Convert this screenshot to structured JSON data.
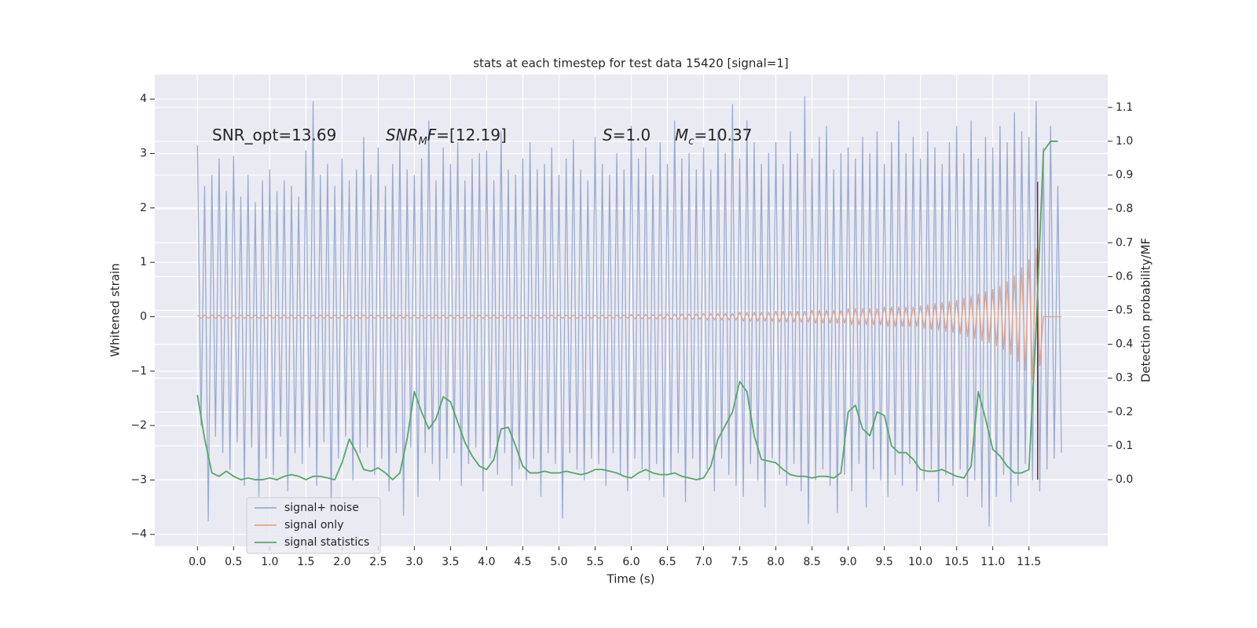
{
  "chart_data": {
    "type": "line",
    "title": "stats at each timestep for test data 15420 [signal=1]",
    "x_label": "Time (s)",
    "y_label": "Whitened strain",
    "y2_label": "Detection probability/MF",
    "grid": true,
    "legend": "lower left",
    "xlim": [
      -0.59,
      12.59
    ],
    "ylim": [
      -4.22,
      4.45
    ],
    "y2lim": [
      -0.197,
      1.197
    ],
    "xticks": [
      {
        "value": 0,
        "label": "0.0"
      },
      0.5,
      {
        "value": 1,
        "label": "1.0"
      },
      1.5,
      {
        "value": 2,
        "label": "2.0"
      },
      2.5,
      {
        "value": 3,
        "label": "3.0"
      },
      3.5,
      {
        "value": 4,
        "label": "4.0"
      },
      4.5,
      {
        "value": 5,
        "label": "5.0"
      },
      5.5,
      {
        "value": 6,
        "label": "6.0"
      },
      6.5,
      {
        "value": 7,
        "label": "7.0"
      },
      7.5,
      {
        "value": 8,
        "label": "8.0"
      },
      8.5,
      {
        "value": 9,
        "label": "9.0"
      },
      9.5,
      {
        "value": 10,
        "label": "10.0"
      },
      10.5,
      {
        "value": 11,
        "label": "11.0"
      },
      11.5
    ],
    "yticks": [
      {
        "value": -4,
        "label": "−4"
      },
      {
        "value": -3,
        "label": "−3"
      },
      {
        "value": -2,
        "label": "−2"
      },
      {
        "value": -1,
        "label": "−1"
      },
      0,
      1,
      2,
      3,
      4
    ],
    "y2ticks": [
      {
        "value": 0,
        "label": "0.0"
      },
      0.1,
      0.2,
      0.3,
      0.4,
      0.5,
      0.6,
      0.7,
      0.8,
      0.9,
      {
        "value": 1,
        "label": "1.0"
      },
      1.1
    ],
    "annotations": [
      [
        {
          "text": "SNR_opt=13.69",
          "style": "normal"
        }
      ],
      [
        {
          "text": "SNR",
          "style": "italic"
        },
        {
          "text": "M",
          "style": "sub"
        },
        {
          "text": "F",
          "style": "italic"
        },
        {
          "text": "=[12.19]",
          "style": "normal"
        }
      ],
      [
        {
          "text": "S",
          "style": "italic"
        },
        {
          "text": "=1.0",
          "style": "normal"
        }
      ],
      [
        {
          "text": "M",
          "style": "italic"
        },
        {
          "text": "c",
          "style": "sub"
        },
        {
          "text": "=10.37",
          "style": "normal"
        }
      ]
    ],
    "vline": {
      "x": 11.62,
      "ymin": 0,
      "ymax": 0.88,
      "color": "#7a2e2e",
      "axis": "y2"
    },
    "x": [
      0,
      0.05,
      0.1,
      0.15,
      0.2,
      0.25,
      0.3,
      0.35,
      0.4,
      0.45,
      0.5,
      0.55,
      0.6,
      0.65,
      0.7,
      0.75,
      0.8,
      0.85,
      0.9,
      0.95,
      1,
      1.05,
      1.1,
      1.15,
      1.2,
      1.25,
      1.3,
      1.35,
      1.4,
      1.45,
      1.5,
      1.55,
      1.6,
      1.65,
      1.7,
      1.75,
      1.8,
      1.85,
      1.9,
      1.95,
      2,
      2.05,
      2.1,
      2.15,
      2.2,
      2.25,
      2.3,
      2.35,
      2.4,
      2.45,
      2.5,
      2.55,
      2.6,
      2.65,
      2.7,
      2.75,
      2.8,
      2.85,
      2.9,
      2.95,
      3,
      3.05,
      3.1,
      3.15,
      3.2,
      3.25,
      3.3,
      3.35,
      3.4,
      3.45,
      3.5,
      3.55,
      3.6,
      3.65,
      3.7,
      3.75,
      3.8,
      3.85,
      3.9,
      3.95,
      4,
      4.05,
      4.1,
      4.15,
      4.2,
      4.25,
      4.3,
      4.35,
      4.4,
      4.45,
      4.5,
      4.55,
      4.6,
      4.65,
      4.7,
      4.75,
      4.8,
      4.85,
      4.9,
      4.95,
      5,
      5.05,
      5.1,
      5.15,
      5.2,
      5.25,
      5.3,
      5.35,
      5.4,
      5.45,
      5.5,
      5.55,
      5.6,
      5.65,
      5.7,
      5.75,
      5.8,
      5.85,
      5.9,
      5.95,
      6,
      6.05,
      6.1,
      6.15,
      6.2,
      6.25,
      6.3,
      6.35,
      6.4,
      6.45,
      6.5,
      6.55,
      6.6,
      6.65,
      6.7,
      6.75,
      6.8,
      6.85,
      6.9,
      6.95,
      7,
      7.05,
      7.1,
      7.15,
      7.2,
      7.25,
      7.3,
      7.35,
      7.4,
      7.45,
      7.5,
      7.55,
      7.6,
      7.65,
      7.7,
      7.75,
      7.8,
      7.85,
      7.9,
      7.95,
      8,
      8.05,
      8.1,
      8.15,
      8.2,
      8.25,
      8.3,
      8.35,
      8.4,
      8.45,
      8.5,
      8.55,
      8.6,
      8.65,
      8.7,
      8.75,
      8.8,
      8.85,
      8.9,
      8.95,
      9,
      9.05,
      9.1,
      9.15,
      9.2,
      9.25,
      9.3,
      9.35,
      9.4,
      9.45,
      9.5,
      9.55,
      9.6,
      9.65,
      9.7,
      9.75,
      9.8,
      9.85,
      9.9,
      9.95,
      10,
      10.05,
      10.1,
      10.15,
      10.2,
      10.25,
      10.3,
      10.35,
      10.4,
      10.45,
      10.5,
      10.55,
      10.6,
      10.65,
      10.7,
      10.75,
      10.8,
      10.85,
      10.9,
      10.95,
      11,
      11.05,
      11.1,
      11.15,
      11.2,
      11.25,
      11.3,
      11.35,
      11.4,
      11.45,
      11.5,
      11.55,
      11.6,
      11.65,
      11.7,
      11.75,
      11.8,
      11.85,
      11.9,
      11.95
    ],
    "series": [
      {
        "name": "signal+ noise",
        "color": "#9aacd2",
        "values": [
          3.15,
          -2.0,
          2.4,
          -3.75,
          2.6,
          -2.2,
          2.9,
          -2.5,
          2.3,
          -2.8,
          2.95,
          -2.3,
          2.2,
          -3.1,
          2.6,
          -2.4,
          2.1,
          -3.3,
          2.5,
          -2.6,
          2.7,
          -2.9,
          2.3,
          -2.2,
          2.5,
          -3.2,
          2.4,
          -2.5,
          2.2,
          -2.7,
          3.05,
          -2.4,
          3.95,
          -3.1,
          2.6,
          -2.3,
          2.8,
          -3.5,
          2.4,
          -2.6,
          2.9,
          -2.2,
          2.5,
          -3.0,
          2.7,
          -2.5,
          3.3,
          -2.4,
          2.6,
          -2.9,
          3.1,
          -2.6,
          2.4,
          -3.2,
          2.8,
          -2.5,
          3.3,
          -3.65,
          2.7,
          -2.4,
          2.6,
          -3.3,
          2.9,
          -2.5,
          3.6,
          -2.7,
          2.5,
          -3.0,
          3.1,
          -2.6,
          2.8,
          -2.5,
          3.2,
          -3.1,
          2.5,
          -2.7,
          2.9,
          -2.4,
          3.0,
          -3.2,
          3.05,
          -2.6,
          2.5,
          -2.9,
          3.4,
          -2.5,
          2.7,
          -3.1,
          2.6,
          -2.8,
          2.9,
          -3.0,
          3.2,
          -2.6,
          2.7,
          -3.3,
          2.8,
          -2.5,
          3.1,
          -2.7,
          2.6,
          -3.7,
          2.9,
          -2.5,
          3.25,
          -2.8,
          2.7,
          -3.0,
          2.5,
          -2.6,
          3.3,
          -2.7,
          2.8,
          -3.1,
          2.6,
          -2.5,
          3.0,
          -2.9,
          2.7,
          -3.2,
          3.5,
          -2.6,
          2.9,
          -2.8,
          3.1,
          -3.0,
          2.6,
          -2.7,
          3.2,
          -3.3,
          2.8,
          -2.9,
          3.6,
          -2.5,
          2.9,
          -3.4,
          3.0,
          -2.6,
          2.7,
          -3.0,
          3.1,
          -2.8,
          2.7,
          -3.2,
          3.4,
          -2.6,
          3.0,
          -2.9,
          3.9,
          -3.1,
          2.9,
          -3.3,
          3.6,
          -2.7,
          3.2,
          -3.0,
          2.8,
          -3.5,
          3.0,
          -2.6,
          3.2,
          -2.9,
          2.8,
          -3.1,
          3.4,
          -2.7,
          3.0,
          -3.2,
          4.05,
          -3.8,
          2.9,
          -3.0,
          3.3,
          -2.8,
          3.5,
          -3.1,
          2.7,
          -3.6,
          3.0,
          -2.9,
          3.1,
          -3.2,
          2.9,
          -2.7,
          3.3,
          -3.5,
          3.0,
          -2.8,
          3.4,
          -3.0,
          2.8,
          -3.3,
          3.2,
          -2.9,
          3.6,
          -3.1,
          3.0,
          -2.7,
          3.3,
          -3.2,
          2.9,
          -3.0,
          3.4,
          -2.8,
          3.1,
          -3.4,
          2.8,
          -2.9,
          3.2,
          -3.1,
          3.5,
          -2.8,
          3.0,
          -3.3,
          3.6,
          -3.0,
          2.9,
          -3.5,
          3.3,
          -3.85,
          3.1,
          -3.3,
          3.5,
          -2.9,
          3.2,
          -3.4,
          3.75,
          -3.1,
          3.4,
          -2.7,
          3.3,
          -3.0,
          3.95,
          -3.2,
          3.1,
          -2.8,
          3.5,
          -2.6,
          2.4,
          -2.5
        ]
      },
      {
        "name": "signal only",
        "color": "#e1a58a",
        "values": [
          0.03,
          -0.03,
          0.03,
          -0.03,
          0.03,
          -0.03,
          0.03,
          -0.03,
          0.03,
          -0.03,
          0.03,
          -0.03,
          0.03,
          -0.03,
          0.03,
          -0.03,
          0.03,
          -0.03,
          0.03,
          -0.03,
          0.03,
          -0.03,
          0.03,
          -0.03,
          0.03,
          -0.03,
          0.03,
          -0.03,
          0.03,
          -0.03,
          0.03,
          -0.03,
          0.03,
          -0.03,
          0.03,
          -0.03,
          0.03,
          -0.03,
          0.03,
          -0.03,
          0.03,
          -0.03,
          0.03,
          -0.03,
          0.03,
          -0.03,
          0.03,
          -0.03,
          0.03,
          -0.03,
          0.03,
          -0.03,
          0.03,
          -0.03,
          0.03,
          -0.03,
          0.03,
          -0.03,
          0.03,
          -0.03,
          0.03,
          -0.03,
          0.03,
          -0.03,
          0.03,
          -0.03,
          0.03,
          -0.03,
          0.03,
          -0.03,
          0.03,
          -0.03,
          0.03,
          -0.03,
          0.03,
          -0.03,
          0.03,
          -0.03,
          0.03,
          -0.03,
          0.03,
          -0.03,
          0.03,
          -0.03,
          0.03,
          -0.03,
          0.03,
          -0.03,
          0.03,
          -0.03,
          0.03,
          -0.03,
          0.03,
          -0.03,
          0.03,
          -0.03,
          0.03,
          -0.03,
          0.03,
          -0.03,
          0.03,
          -0.03,
          0.03,
          -0.03,
          0.03,
          -0.03,
          0.03,
          -0.03,
          0.03,
          -0.03,
          0.03,
          -0.03,
          0.03,
          -0.03,
          0.03,
          -0.03,
          0.03,
          -0.03,
          0.03,
          -0.03,
          0.04,
          -0.04,
          0.04,
          -0.04,
          0.04,
          -0.04,
          0.04,
          -0.04,
          0.04,
          -0.04,
          0.05,
          -0.05,
          0.05,
          -0.05,
          0.05,
          -0.05,
          0.05,
          -0.05,
          0.05,
          -0.05,
          0.06,
          -0.06,
          0.06,
          -0.06,
          0.06,
          -0.06,
          0.06,
          -0.06,
          0.06,
          -0.06,
          0.08,
          -0.08,
          0.08,
          -0.08,
          0.08,
          -0.08,
          0.08,
          -0.08,
          0.08,
          -0.08,
          0.1,
          -0.1,
          0.1,
          -0.1,
          0.1,
          -0.1,
          0.1,
          -0.1,
          0.1,
          -0.1,
          0.12,
          -0.12,
          0.12,
          -0.12,
          0.12,
          -0.12,
          0.12,
          -0.12,
          0.12,
          -0.12,
          0.15,
          -0.15,
          0.15,
          -0.15,
          0.15,
          -0.15,
          0.15,
          -0.15,
          0.15,
          -0.15,
          0.18,
          -0.18,
          0.18,
          -0.18,
          0.18,
          -0.18,
          0.18,
          -0.18,
          0.18,
          -0.18,
          0.2,
          -0.21,
          0.22,
          -0.23,
          0.24,
          -0.25,
          0.26,
          -0.27,
          0.28,
          -0.29,
          0.3,
          -0.32,
          0.34,
          -0.36,
          0.38,
          -0.4,
          0.42,
          -0.44,
          0.46,
          -0.48,
          0.5,
          -0.53,
          0.56,
          -0.6,
          0.64,
          -0.69,
          0.75,
          -0.82,
          0.9,
          -0.98,
          1.05,
          -1.15,
          1.25,
          -0.9,
          0,
          0,
          0,
          0,
          0,
          0
        ]
      },
      {
        "name": "signal statistics",
        "color": "#55a868",
        "axis": "y2",
        "x": [
          0,
          0.1,
          0.2,
          0.3,
          0.4,
          0.5,
          0.6,
          0.7,
          0.8,
          0.9,
          1,
          1.1,
          1.2,
          1.3,
          1.4,
          1.5,
          1.6,
          1.7,
          1.8,
          1.9,
          2,
          2.1,
          2.2,
          2.3,
          2.4,
          2.5,
          2.6,
          2.7,
          2.8,
          2.9,
          3,
          3.1,
          3.2,
          3.3,
          3.4,
          3.5,
          3.6,
          3.7,
          3.8,
          3.9,
          4,
          4.1,
          4.2,
          4.3,
          4.4,
          4.5,
          4.6,
          4.7,
          4.8,
          4.9,
          5,
          5.1,
          5.2,
          5.3,
          5.4,
          5.5,
          5.6,
          5.7,
          5.8,
          5.9,
          6,
          6.1,
          6.2,
          6.3,
          6.4,
          6.5,
          6.6,
          6.7,
          6.8,
          6.9,
          7,
          7.1,
          7.2,
          7.3,
          7.4,
          7.5,
          7.6,
          7.7,
          7.8,
          7.9,
          8,
          8.1,
          8.2,
          8.3,
          8.4,
          8.5,
          8.6,
          8.7,
          8.8,
          8.9,
          9,
          9.1,
          9.2,
          9.3,
          9.4,
          9.5,
          9.6,
          9.7,
          9.8,
          9.9,
          10,
          10.1,
          10.2,
          10.3,
          10.4,
          10.5,
          10.6,
          10.7,
          10.8,
          10.9,
          11,
          11.1,
          11.2,
          11.3,
          11.4,
          11.5,
          11.6,
          11.7,
          11.8,
          11.9
        ],
        "values": [
          0.25,
          0.12,
          0.02,
          0.01,
          0.025,
          0.01,
          0.0,
          0.005,
          0.0,
          0.0,
          0.005,
          0.0,
          0.01,
          0.015,
          0.01,
          0.0,
          0.01,
          0.01,
          0.005,
          0.0,
          0.05,
          0.12,
          0.08,
          0.03,
          0.025,
          0.035,
          0.02,
          0.0,
          0.02,
          0.12,
          0.26,
          0.2,
          0.15,
          0.18,
          0.245,
          0.23,
          0.17,
          0.11,
          0.07,
          0.04,
          0.03,
          0.06,
          0.15,
          0.155,
          0.1,
          0.04,
          0.02,
          0.02,
          0.025,
          0.02,
          0.02,
          0.025,
          0.02,
          0.015,
          0.02,
          0.03,
          0.03,
          0.025,
          0.02,
          0.01,
          0.005,
          0.02,
          0.03,
          0.02,
          0.015,
          0.015,
          0.02,
          0.01,
          0.005,
          0.0,
          0.005,
          0.04,
          0.12,
          0.16,
          0.2,
          0.29,
          0.26,
          0.13,
          0.06,
          0.055,
          0.05,
          0.03,
          0.015,
          0.01,
          0.01,
          0.005,
          0.01,
          0.01,
          0.005,
          0.02,
          0.2,
          0.22,
          0.15,
          0.13,
          0.2,
          0.19,
          0.1,
          0.08,
          0.08,
          0.06,
          0.03,
          0.025,
          0.025,
          0.03,
          0.02,
          0.01,
          0.005,
          0.04,
          0.26,
          0.18,
          0.09,
          0.07,
          0.04,
          0.02,
          0.02,
          0.03,
          0.45,
          0.97,
          1.0,
          1.0
        ]
      }
    ]
  }
}
